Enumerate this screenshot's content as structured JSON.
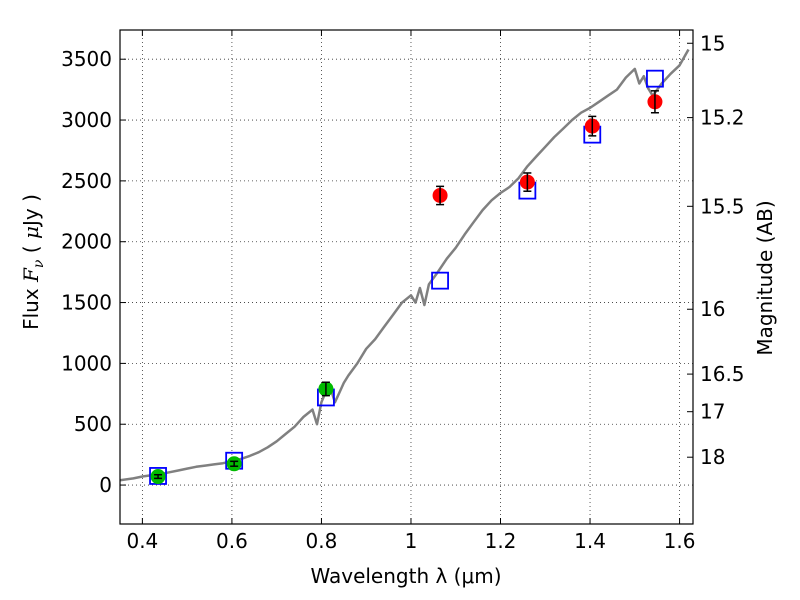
{
  "chart_data": {
    "type": "scatter",
    "title": "",
    "xlabel": "Wavelength  λ (μm)",
    "ylabel": "Flux  F_ν  ( μJy )",
    "ylabel_right": "Magnitude (AB)",
    "xlim": [
      0.35,
      1.63
    ],
    "ylim": [
      -320,
      3740
    ],
    "grid": true,
    "x_ticks": [
      0.4,
      0.6,
      0.8,
      1.0,
      1.2,
      1.4,
      1.6
    ],
    "x_tick_labels": [
      "0.4",
      "0.6",
      "0.8",
      "1",
      "1.2",
      "1.4",
      "1.6"
    ],
    "y_ticks": [
      0,
      500,
      1000,
      1500,
      2000,
      2500,
      3000,
      3500
    ],
    "y_tick_labels": [
      "0",
      "500",
      "1000",
      "1500",
      "2000",
      "2500",
      "3000",
      "3500"
    ],
    "right_ticks": [
      {
        "label": "15",
        "flux": 3631
      },
      {
        "label": "15.2",
        "flux": 3020
      },
      {
        "label": "15.5",
        "flux": 2291
      },
      {
        "label": "16",
        "flux": 1445
      },
      {
        "label": "16.5",
        "flux": 912
      },
      {
        "label": "17",
        "flux": 603
      },
      {
        "label": "18",
        "flux": 229
      }
    ],
    "series": [
      {
        "kind": "line",
        "color": "#808080",
        "x": [
          0.35,
          0.38,
          0.4,
          0.42,
          0.44,
          0.46,
          0.48,
          0.5,
          0.52,
          0.54,
          0.56,
          0.58,
          0.6,
          0.62,
          0.64,
          0.66,
          0.68,
          0.7,
          0.72,
          0.74,
          0.76,
          0.78,
          0.79,
          0.8,
          0.81,
          0.82,
          0.83,
          0.84,
          0.85,
          0.86,
          0.88,
          0.9,
          0.92,
          0.94,
          0.96,
          0.98,
          1.0,
          1.01,
          1.02,
          1.03,
          1.04,
          1.06,
          1.08,
          1.1,
          1.12,
          1.14,
          1.16,
          1.18,
          1.2,
          1.22,
          1.24,
          1.26,
          1.28,
          1.3,
          1.32,
          1.34,
          1.36,
          1.38,
          1.4,
          1.42,
          1.44,
          1.46,
          1.48,
          1.5,
          1.51,
          1.52,
          1.53,
          1.54,
          1.56,
          1.58,
          1.6,
          1.62
        ],
        "y": [
          40,
          55,
          70,
          80,
          90,
          105,
          120,
          135,
          150,
          160,
          170,
          180,
          195,
          215,
          240,
          270,
          310,
          360,
          420,
          480,
          560,
          620,
          500,
          680,
          770,
          800,
          680,
          760,
          840,
          900,
          1000,
          1120,
          1200,
          1300,
          1400,
          1500,
          1560,
          1500,
          1620,
          1480,
          1650,
          1750,
          1860,
          1950,
          2060,
          2160,
          2260,
          2340,
          2400,
          2450,
          2520,
          2620,
          2700,
          2780,
          2860,
          2930,
          3000,
          3060,
          3100,
          3150,
          3200,
          3250,
          3350,
          3420,
          3300,
          3360,
          3260,
          3200,
          3300,
          3380,
          3450,
          3580
        ]
      },
      {
        "kind": "open-square",
        "color": "#0000ff",
        "x": [
          0.435,
          0.605,
          0.81,
          1.065,
          1.26,
          1.405,
          1.545
        ],
        "y": [
          75,
          200,
          720,
          1680,
          2420,
          2880,
          3340
        ]
      },
      {
        "kind": "filled-circle",
        "color": "#00bb00",
        "x": [
          0.435,
          0.605,
          0.81
        ],
        "y": [
          70,
          175,
          790
        ],
        "err": [
          15,
          20,
          55
        ]
      },
      {
        "kind": "filled-circle",
        "color": "#ff0000",
        "x": [
          1.065,
          1.26,
          1.405,
          1.545
        ],
        "y": [
          2380,
          2490,
          2950,
          3150
        ],
        "err": [
          75,
          75,
          80,
          90
        ]
      }
    ]
  }
}
